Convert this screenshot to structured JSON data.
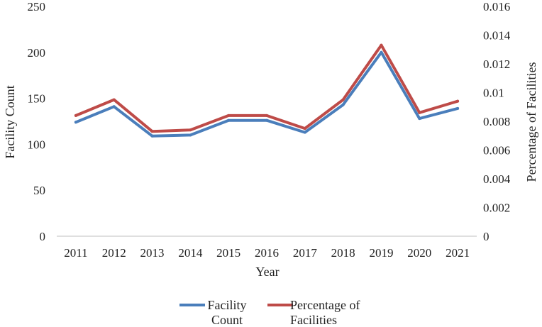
{
  "chart_data": {
    "type": "line",
    "title": "",
    "categories": [
      "2011",
      "2012",
      "2013",
      "2014",
      "2015",
      "2016",
      "2017",
      "2018",
      "2019",
      "2020",
      "2021"
    ],
    "xlabel": "Year",
    "ylabel_left": "Facility Count",
    "ylabel_right": "Percentage of Facilities",
    "ylim_left": [
      0,
      250
    ],
    "yticks_left": [
      "0",
      "50",
      "100",
      "150",
      "200",
      "250"
    ],
    "ylim_right": [
      0,
      0.016
    ],
    "yticks_right": [
      "0",
      "0.002",
      "0.004",
      "0.006",
      "0.008",
      "0.01",
      "0.012",
      "0.014",
      "0.016"
    ],
    "grid": false,
    "legend_position": "bottom",
    "series": [
      {
        "name": "Facility Count",
        "legend_lines": [
          "Facility",
          "Count"
        ],
        "axis": "left",
        "color": "#4a7ebb",
        "values": [
          124,
          141,
          109,
          110,
          126,
          126,
          113,
          143,
          200,
          128,
          139
        ]
      },
      {
        "name": "Percentage of Facilities",
        "legend_lines": [
          "Percentage of",
          "Facilities"
        ],
        "axis": "right",
        "color": "#be4b48",
        "values": [
          0.0084,
          0.0095,
          0.0073,
          0.0074,
          0.0084,
          0.0084,
          0.0075,
          0.0095,
          0.0133,
          0.0086,
          0.0094
        ]
      }
    ]
  }
}
